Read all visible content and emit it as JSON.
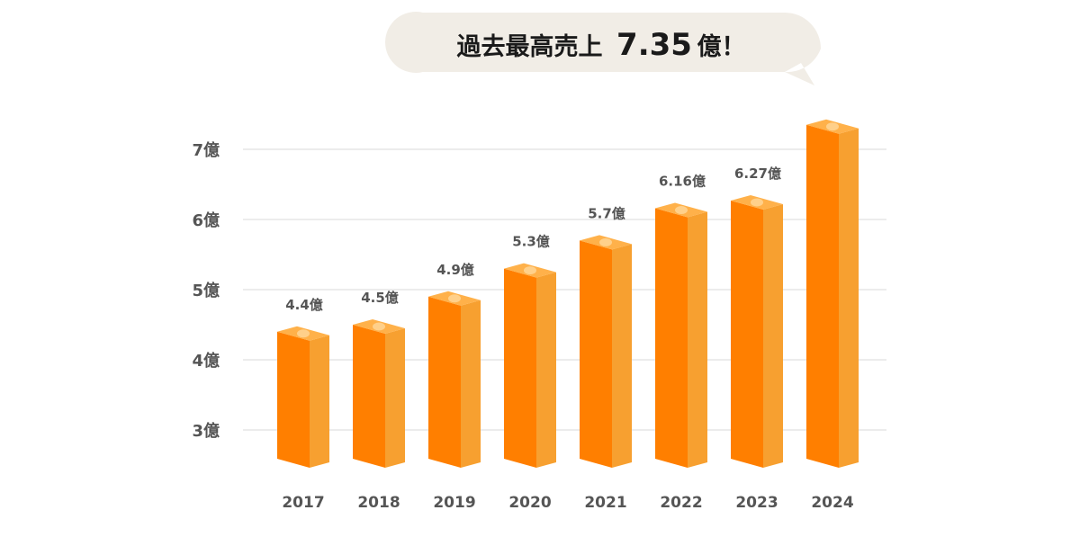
{
  "chart_data": {
    "type": "bar",
    "title": "",
    "xlabel": "",
    "ylabel": "",
    "categories": [
      "2017",
      "2018",
      "2019",
      "2020",
      "2021",
      "2022",
      "2023",
      "2024"
    ],
    "values": [
      4.4,
      4.5,
      4.9,
      5.3,
      5.7,
      6.16,
      6.27,
      7.35
    ],
    "data_labels": [
      "4.4億",
      "4.5億",
      "4.9億",
      "5.3億",
      "5.7億",
      "6.16億",
      "6.27億",
      ""
    ],
    "y_ticks": [
      3,
      4,
      5,
      6,
      7
    ],
    "y_tick_labels": [
      "3億",
      "4億",
      "5億",
      "6億",
      "7億"
    ],
    "ylim": [
      2.7,
      7.4
    ],
    "grid": true,
    "legend": "none",
    "colors": {
      "front": "#ff7f00",
      "side": "#f7a030",
      "top": "#ffb14a",
      "top_dot": "#ffd08a",
      "grid": "#d9d9d9",
      "callout_bg": "#f1ede6"
    }
  },
  "callout": {
    "text_prefix": "過去最高売上",
    "value": "7.35",
    "unit_suffix": "億！"
  }
}
